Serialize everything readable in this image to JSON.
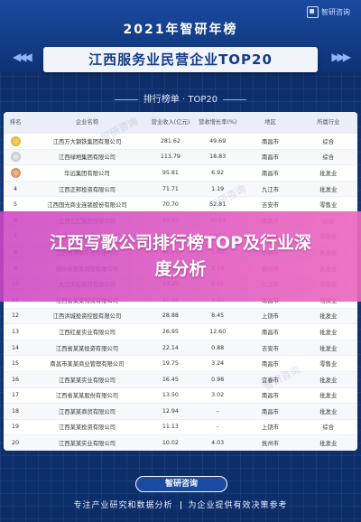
{
  "brand": {
    "logo_text": "智研咨询"
  },
  "header": {
    "year_title": "2021年智研年榜",
    "main_title": "江西服务业民营企业TOP20",
    "subtitle": "排行榜单 · TOP20"
  },
  "table": {
    "columns": [
      "排名",
      "企业名称",
      "营业收入(亿元)",
      "营收增长率(%)",
      "地区",
      "所属行业"
    ],
    "rows": [
      {
        "rank": "1",
        "medal": "gold",
        "name": "江西方大钢铁集团有限公司",
        "revenue": "281.62",
        "growth": "49.69",
        "region": "南昌市",
        "industry": "综合"
      },
      {
        "rank": "2",
        "medal": "silver",
        "name": "江西绿地集团有限公司",
        "revenue": "113.79",
        "growth": "18.83",
        "region": "南昌市",
        "industry": "综合"
      },
      {
        "rank": "3",
        "medal": "bronze",
        "name": "华远集团有限公司",
        "revenue": "95.81",
        "growth": "6.92",
        "region": "南昌市",
        "industry": "批发业"
      },
      {
        "rank": "4",
        "medal": "",
        "name": "江西正邦投资有限公司",
        "revenue": "71.71",
        "growth": "1.19",
        "region": "九江市",
        "industry": "批发业"
      },
      {
        "rank": "5",
        "medal": "",
        "name": "江西国光商业连锁股份有限公司",
        "revenue": "70.70",
        "growth": "52.81",
        "region": "吉安市",
        "industry": "零售业"
      },
      {
        "rank": "6",
        "medal": "",
        "name": "江西汇仁集团有限公司",
        "revenue": "55.07",
        "growth": "36.51",
        "region": "南昌市",
        "industry": "综合"
      },
      {
        "rank": "7",
        "medal": "",
        "name": "江西洪客隆百货有限公司",
        "revenue": "48.31",
        "growth": "13.50",
        "region": "南昌市",
        "industry": "零售业"
      },
      {
        "rank": "8",
        "medal": "",
        "name": "江西省博能实业有限公司",
        "revenue": "41.27",
        "growth": "5.68",
        "region": "南昌市",
        "industry": "批发业"
      },
      {
        "rank": "9",
        "medal": "",
        "name": "赣州市某某商贸有限公司",
        "revenue": "36.90",
        "growth": "2.14",
        "region": "赣州市",
        "industry": "批发业"
      },
      {
        "rank": "10",
        "medal": "",
        "name": "九江天虹商贸有限公司",
        "revenue": "33.25",
        "growth": "9.42",
        "region": "九江市",
        "industry": "零售业"
      },
      {
        "rank": "11",
        "medal": "",
        "name": "江西省某某物流有限公司",
        "revenue": "31.28",
        "growth": "1.80",
        "region": "南昌市",
        "industry": "物流业"
      },
      {
        "rank": "12",
        "medal": "",
        "name": "江西洪城投资控股有限公司",
        "revenue": "28.88",
        "growth": "8.45",
        "region": "上饶市",
        "industry": "批发业"
      },
      {
        "rank": "13",
        "medal": "",
        "name": "江西红星实业有限公司",
        "revenue": "26.95",
        "growth": "12.60",
        "region": "南昌市",
        "industry": "批发业"
      },
      {
        "rank": "14",
        "medal": "",
        "name": "江西省某某投资有限公司",
        "revenue": "22.14",
        "growth": "0.88",
        "region": "吉安市",
        "industry": "批发业"
      },
      {
        "rank": "15",
        "medal": "",
        "name": "南昌市某某商业管理有限公司",
        "revenue": "19.75",
        "growth": "3.24",
        "region": "南昌市",
        "industry": "零售业"
      },
      {
        "rank": "16",
        "medal": "",
        "name": "江西某某实业有限公司",
        "revenue": "16.45",
        "growth": "0.98",
        "region": "宜春市",
        "industry": "批发业"
      },
      {
        "rank": "17",
        "medal": "",
        "name": "江西省某某股份有限公司",
        "revenue": "13.50",
        "growth": "3.02",
        "region": "南昌市",
        "industry": "批发业"
      },
      {
        "rank": "18",
        "medal": "",
        "name": "江西某某商贸有限公司",
        "revenue": "12.94",
        "growth": "-",
        "region": "南昌市",
        "industry": "批发业"
      },
      {
        "rank": "19",
        "medal": "",
        "name": "江西某某投资有限公司",
        "revenue": "11.13",
        "growth": "-",
        "region": "上饶市",
        "industry": "综合"
      },
      {
        "rank": "20",
        "medal": "",
        "name": "江西某某实业有限公司",
        "revenue": "10.02",
        "growth": "4.03",
        "region": "抚州市",
        "industry": "批发业"
      }
    ]
  },
  "banner": {
    "text": "江西写歌公司排行榜TOP及行业深度分析"
  },
  "footer": {
    "pill": "智研咨询",
    "left_text": "专注产业研究和数据分析",
    "right_text": "为企业提供有效决策参考"
  },
  "colors": {
    "background": "#0d2b5e",
    "accent": "#163c8a",
    "banner": "#d84fc4"
  },
  "icons": [
    "logo-mark-icon",
    "gold-medal-icon",
    "silver-medal-icon",
    "bronze-medal-icon"
  ]
}
